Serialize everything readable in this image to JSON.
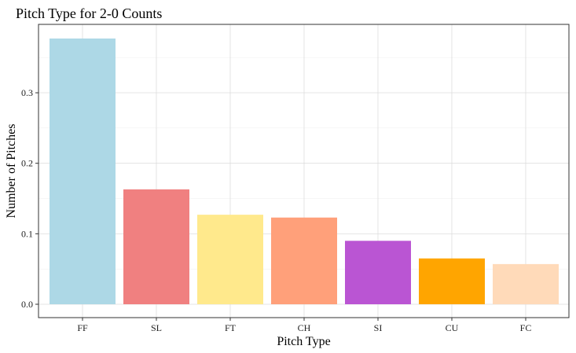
{
  "chart_data": {
    "type": "bar",
    "title": "Pitch Type for 2-0 Counts",
    "xlabel": "Pitch Type",
    "ylabel": "Number of Pitches",
    "categories": [
      "FF",
      "SL",
      "FT",
      "CH",
      "SI",
      "CU",
      "FC"
    ],
    "values": [
      0.377,
      0.163,
      0.127,
      0.123,
      0.09,
      0.065,
      0.057
    ],
    "colors": [
      "#ADD8E6",
      "#F08080",
      "#FFE98C",
      "#FFA07A",
      "#BA55D3",
      "#FFA500",
      "#FFDAB9"
    ],
    "ylim": [
      0,
      0.4
    ],
    "yticks": [
      0.0,
      0.1,
      0.2,
      0.3
    ],
    "ytick_labels": [
      "0.0",
      "0.1",
      "0.2",
      "0.3"
    ],
    "grid": true,
    "legend": "none"
  }
}
